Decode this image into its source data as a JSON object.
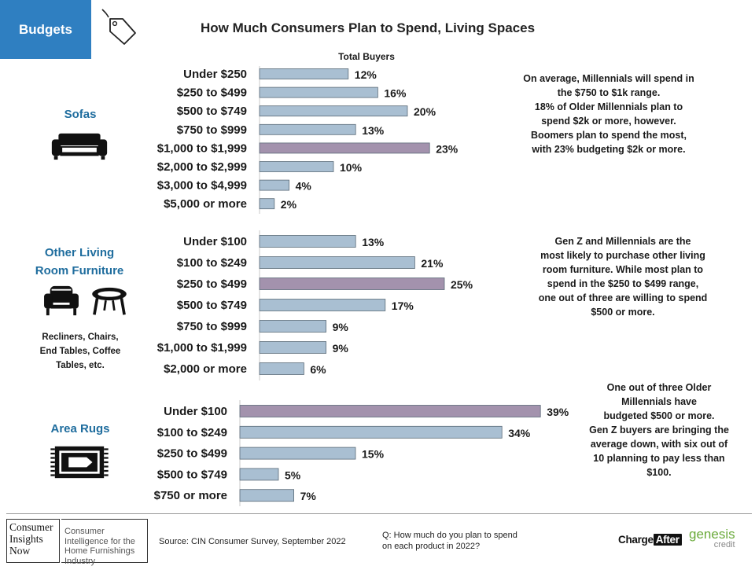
{
  "header": {
    "tab_label": "Budgets",
    "title": "How Much Consumers Plan to Spend, Living Spaces"
  },
  "chart_data": [
    {
      "type": "bar",
      "orientation": "horizontal",
      "section": "Sofas",
      "series_header": "Total Buyers",
      "categories": [
        "Under $250",
        "$250 to $499",
        "$500 to $749",
        "$750 to $999",
        "$1,000 to $1,999",
        "$2,000 to $2,999",
        "$3,000 to $4,999",
        "$5,000 or more"
      ],
      "values": [
        12,
        16,
        20,
        13,
        23,
        10,
        4,
        2
      ],
      "labels": [
        "12%",
        "16%",
        "20%",
        "13%",
        "23%",
        "10%",
        "4%",
        "2%"
      ],
      "highlight_index": 4,
      "unit": "%"
    },
    {
      "type": "bar",
      "orientation": "horizontal",
      "section": "Other Living Room Furniture",
      "categories": [
        "Under $100",
        "$100 to $249",
        "$250 to $499",
        "$500 to $749",
        "$750 to $999",
        "$1,000 to $1,999",
        "$2,000 or more"
      ],
      "values": [
        13,
        21,
        25,
        17,
        9,
        9,
        6
      ],
      "labels": [
        "13%",
        "21%",
        "25%",
        "17%",
        "9%",
        "9%",
        "6%"
      ],
      "highlight_index": 2,
      "unit": "%"
    },
    {
      "type": "bar",
      "orientation": "horizontal",
      "section": "Area Rugs",
      "categories": [
        "Under $100",
        "$100 to $249",
        "$250 to $499",
        "$500 to $749",
        "$750 or more"
      ],
      "values": [
        39,
        34,
        15,
        5,
        7
      ],
      "labels": [
        "39%",
        "34%",
        "15%",
        "5%",
        "7%"
      ],
      "highlight_index": 0,
      "unit": "%"
    }
  ],
  "colors": {
    "bar": "#a9bfd2",
    "bar_highlight": "#a392ad",
    "bar_edge": "#5b6b78",
    "section_title": "#1f6d9e",
    "tab_bg": "#2f7fc1"
  },
  "sections": {
    "sofas": {
      "title": "Sofas",
      "icon": "sofa-icon",
      "note": "On average, Millennials will spend in\nthe $750 to $1k range.\n18% of Older Millennials plan to\nspend $2k or more, however.\nBoomers plan to spend the most,\nwith 23% budgeting $2k or more."
    },
    "furniture": {
      "title_line1": "Other Living",
      "title_line2": "Room Furniture",
      "icons": [
        "armchair-icon",
        "coffee-table-icon"
      ],
      "subtitle_line1": "Recliners, Chairs,",
      "subtitle_line2": "End Tables, Coffee",
      "subtitle_line3": "Tables, etc.",
      "note": "Gen Z and Millennials are the\nmost likely to purchase other living\nroom furniture. While most plan to\nspend in the $250 to $499  range,\n one out of three are willing to spend\n$500 or more."
    },
    "rugs": {
      "title": "Area Rugs",
      "icon": "rug-icon",
      "note": "One out of three Older\nMillennials have\nbudgeted $500 or more.\nGen Z buyers are bringing the\naverage down, with six out of\n10 planning to pay less than\n$100."
    }
  },
  "footer": {
    "logo_line1": "Consumer",
    "logo_line2": "Insights",
    "logo_line3": "Now",
    "tagline": "Consumer Intelligence for the Home Furnishings Industry",
    "source": "Source: CIN Consumer Survey, September  2022",
    "question": "Q: How much do you plan to spend\non each product in 2022?",
    "chargeafter_charge": "Charge",
    "chargeafter_after": "After",
    "genesis": "genesis",
    "genesis_credit": "credit"
  }
}
